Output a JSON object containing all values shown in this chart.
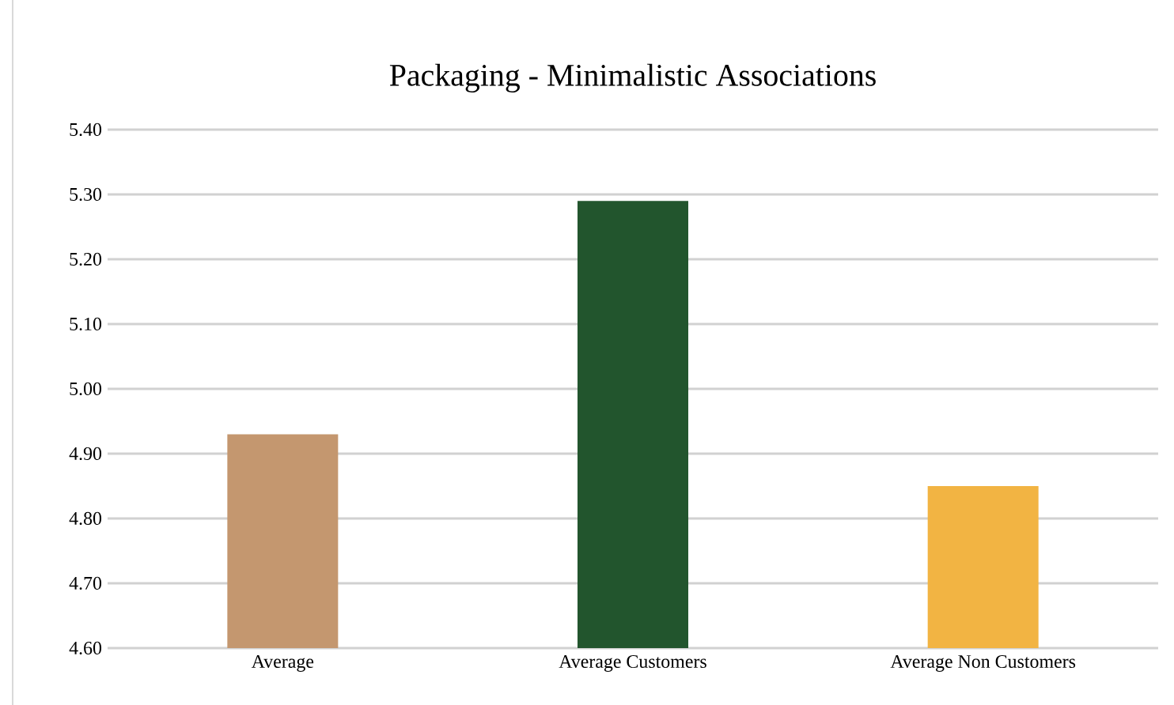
{
  "chart_data": {
    "type": "bar",
    "title": "Packaging - Minimalistic Associations",
    "categories": [
      "Average",
      "Average Customers",
      "Average Non Customers"
    ],
    "values": [
      4.93,
      5.29,
      4.85
    ],
    "colors": [
      "#c4976f",
      "#22552d",
      "#f2b443"
    ],
    "ylim": [
      4.6,
      5.4
    ],
    "yticks": [
      {
        "value": 4.6,
        "label": "4.60"
      },
      {
        "value": 4.7,
        "label": "4.70"
      },
      {
        "value": 4.8,
        "label": "4.80"
      },
      {
        "value": 4.9,
        "label": "4.90"
      },
      {
        "value": 5.0,
        "label": "5.00"
      },
      {
        "value": 5.1,
        "label": "5.10"
      },
      {
        "value": 5.2,
        "label": "5.20"
      },
      {
        "value": 5.3,
        "label": "5.30"
      },
      {
        "value": 5.4,
        "label": "5.40"
      }
    ],
    "grid": "y"
  }
}
